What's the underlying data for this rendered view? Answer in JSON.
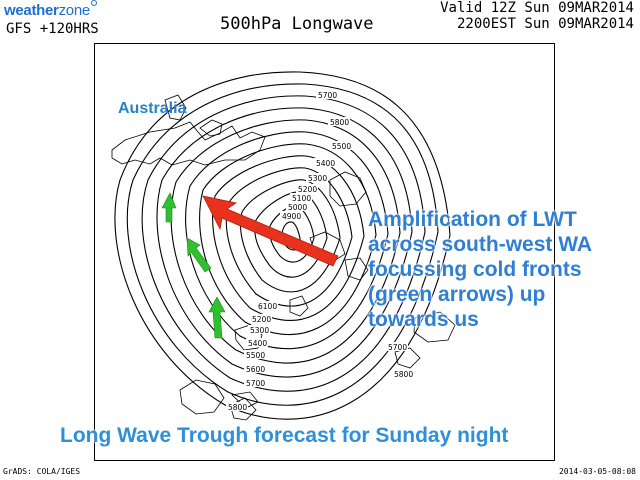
{
  "header": {
    "logo_text_bold": "weather",
    "logo_text": "zone",
    "model_run": "GFS +120HRS",
    "title": "500hPa Longwave",
    "valid_utc": "Valid 12Z Sun 09MAR2014",
    "valid_local": "2200EST Sun 09MAR2014"
  },
  "annotations": {
    "region_label": "Australia",
    "callout_lines": [
      "Amplification of LWT",
      "across south-west WA",
      "focussing cold fronts",
      "(green arrows) up",
      "towards us"
    ],
    "footer": "Long Wave Trough forecast for Sunday night"
  },
  "contour_labels": [
    "5700",
    "5800",
    "5500",
    "5400",
    "5300",
    "5200",
    "5100",
    "5000",
    "4900",
    "6100",
    "5200",
    "5300",
    "5400",
    "5500",
    "5600",
    "5700",
    "5800",
    "5700",
    "5800"
  ],
  "footer_meta": {
    "credit": "GrADS: COLA/IGES",
    "timestamp": "2014-03-05-08:08"
  },
  "colors": {
    "logo": "#1f6fd0",
    "callout_text": "#2f7fd3",
    "footer_text": "#2f8fd9",
    "red_arrow": "#e8321e",
    "green_arrows": "#2fbf2f"
  },
  "icons": {
    "red_arrow": "arrow-icon",
    "green_arrows": "arrow-icon"
  }
}
